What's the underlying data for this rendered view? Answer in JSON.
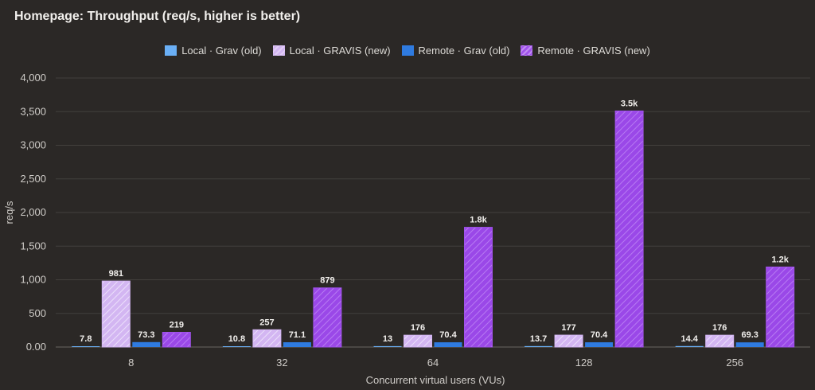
{
  "chart_data": {
    "type": "bar",
    "title": "Homepage: Throughput (req/s, higher is better)",
    "xlabel": "Concurrent virtual users (VUs)",
    "ylabel": "req/s",
    "ylim": [
      0,
      4000
    ],
    "yticks": [
      "0.00",
      "500",
      "1,000",
      "1,500",
      "2,000",
      "2,500",
      "3,000",
      "3,500",
      "4,000"
    ],
    "grid": true,
    "legend_position": "top-center",
    "categories": [
      "8",
      "32",
      "64",
      "128",
      "256"
    ],
    "series": [
      {
        "name": "Local · Grav (old)",
        "color": "#6aaff5",
        "hatched": false,
        "values": [
          7.8,
          10.8,
          13,
          13.7,
          14.4
        ],
        "labels": [
          "7.8",
          "10.8",
          "13",
          "13.7",
          "14.4"
        ]
      },
      {
        "name": "Local · GRAVIS (new)",
        "color": "#d3b6f2",
        "hatched": true,
        "values": [
          981,
          257,
          176,
          177,
          176
        ],
        "labels": [
          "981",
          "257",
          "176",
          "177",
          "176"
        ]
      },
      {
        "name": "Remote · Grav (old)",
        "color": "#2f7be0",
        "hatched": false,
        "values": [
          73.3,
          71.1,
          70.4,
          70.4,
          69.3
        ],
        "labels": [
          "73.3",
          "71.1",
          "70.4",
          "70.4",
          "69.3"
        ]
      },
      {
        "name": "Remote · GRAVIS (new)",
        "color": "#a152ec",
        "hatched": true,
        "values": [
          219,
          879,
          1780,
          3510,
          1190
        ],
        "labels": [
          "219",
          "879",
          "1.8k",
          "3.5k",
          "1.2k"
        ]
      }
    ]
  }
}
